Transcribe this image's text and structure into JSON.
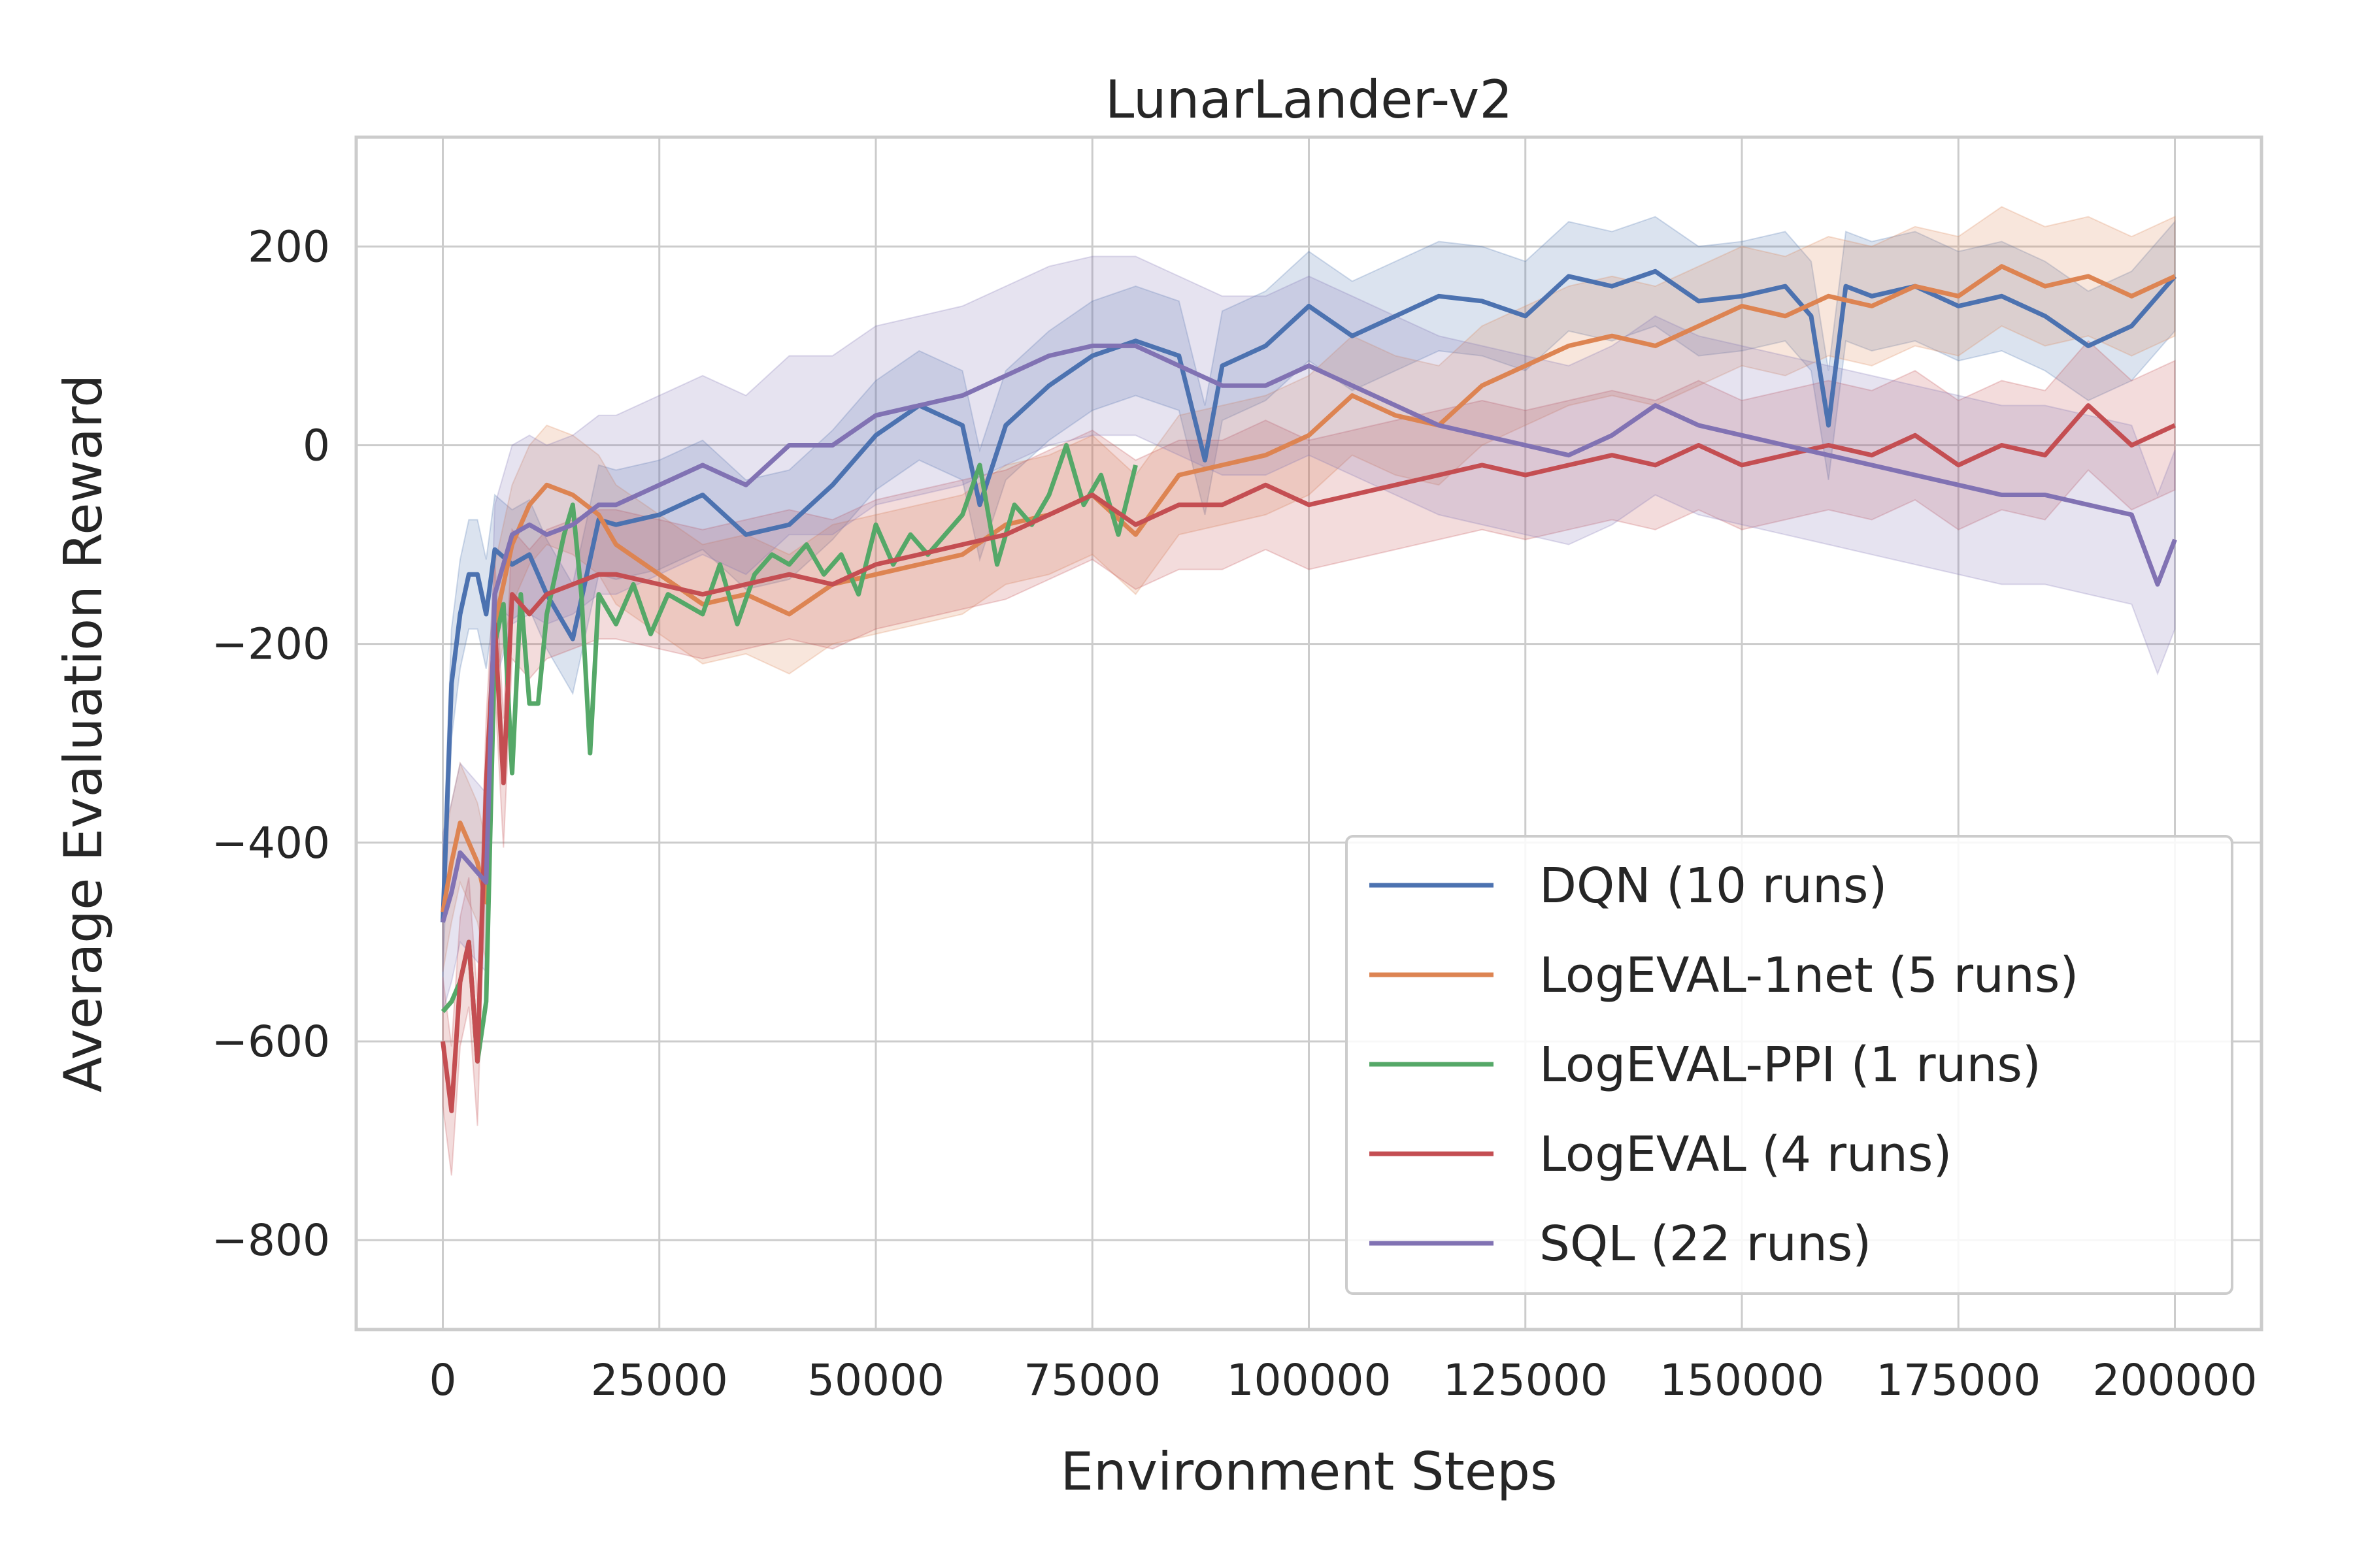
{
  "chart_data": {
    "type": "line",
    "title": "LunarLander-v2",
    "xlabel": "Environment Steps",
    "ylabel": "Average Evaluation Reward",
    "xlim": [
      -10000,
      210000
    ],
    "ylim": [
      -890,
      310
    ],
    "xticks": [
      0,
      25000,
      50000,
      75000,
      100000,
      125000,
      150000,
      175000,
      200000
    ],
    "yticks": [
      200,
      0,
      -200,
      -400,
      -600,
      -800
    ],
    "xtick_labels": [
      "0",
      "25000",
      "50000",
      "75000",
      "100000",
      "125000",
      "150000",
      "175000",
      "200000"
    ],
    "ytick_labels": [
      "200",
      "0",
      "−200",
      "−400",
      "−600",
      "−800"
    ],
    "grid": true,
    "legend_position": "lower-right",
    "series": [
      {
        "name": "DQN (10 runs)",
        "color": "#4c72b0",
        "band": 55,
        "x": [
          0,
          1000,
          2000,
          3000,
          4000,
          5000,
          6000,
          8000,
          10000,
          12000,
          15000,
          18000,
          20000,
          25000,
          30000,
          35000,
          40000,
          45000,
          50000,
          55000,
          60000,
          62000,
          65000,
          70000,
          75000,
          80000,
          85000,
          88000,
          90000,
          95000,
          100000,
          105000,
          110000,
          115000,
          120000,
          125000,
          130000,
          135000,
          140000,
          145000,
          150000,
          155000,
          158000,
          160000,
          162000,
          165000,
          170000,
          175000,
          180000,
          185000,
          190000,
          195000,
          200000
        ],
        "y": [
          -480,
          -240,
          -170,
          -130,
          -130,
          -170,
          -105,
          -120,
          -110,
          -150,
          -195,
          -75,
          -80,
          -70,
          -50,
          -90,
          -80,
          -40,
          10,
          40,
          20,
          -60,
          20,
          60,
          90,
          105,
          90,
          -15,
          80,
          100,
          140,
          110,
          130,
          150,
          145,
          130,
          170,
          160,
          175,
          145,
          150,
          160,
          130,
          20,
          160,
          150,
          160,
          140,
          150,
          130,
          100,
          120,
          170
        ]
      },
      {
        "name": "LogEVAL-1net (5 runs)",
        "color": "#dd8452",
        "band": 60,
        "x": [
          0,
          1000,
          2000,
          3000,
          4000,
          5000,
          6000,
          8000,
          10000,
          12000,
          15000,
          18000,
          20000,
          25000,
          30000,
          35000,
          40000,
          45000,
          50000,
          55000,
          60000,
          65000,
          70000,
          75000,
          80000,
          85000,
          90000,
          95000,
          100000,
          105000,
          110000,
          115000,
          120000,
          125000,
          130000,
          135000,
          140000,
          145000,
          150000,
          155000,
          160000,
          165000,
          170000,
          175000,
          180000,
          185000,
          190000,
          195000,
          200000
        ],
        "y": [
          -470,
          -420,
          -380,
          -400,
          -420,
          -460,
          -180,
          -100,
          -60,
          -40,
          -50,
          -70,
          -100,
          -130,
          -160,
          -150,
          -170,
          -140,
          -130,
          -120,
          -110,
          -80,
          -70,
          -50,
          -90,
          -30,
          -20,
          -10,
          10,
          50,
          30,
          20,
          60,
          80,
          100,
          110,
          100,
          120,
          140,
          130,
          150,
          140,
          160,
          150,
          180,
          160,
          170,
          150,
          170
        ]
      },
      {
        "name": "LogEVAL-PPI (1 runs)",
        "color": "#55a868",
        "band": 0,
        "x": [
          0,
          1000,
          2000,
          3000,
          4000,
          5000,
          6000,
          7000,
          8000,
          9000,
          10000,
          11000,
          12000,
          13000,
          14000,
          15000,
          16000,
          17000,
          18000,
          20000,
          22000,
          24000,
          26000,
          28000,
          30000,
          32000,
          34000,
          36000,
          38000,
          40000,
          42000,
          44000,
          46000,
          48000,
          50000,
          52000,
          54000,
          56000,
          58000,
          60000,
          62000,
          64000,
          66000,
          68000,
          70000,
          72000,
          74000,
          76000,
          78000,
          80000
        ],
        "y": [
          -570,
          -560,
          -540,
          -500,
          -620,
          -560,
          -200,
          -160,
          -330,
          -150,
          -260,
          -260,
          -170,
          -130,
          -90,
          -60,
          -150,
          -310,
          -150,
          -180,
          -140,
          -190,
          -150,
          -160,
          -170,
          -120,
          -180,
          -130,
          -110,
          -120,
          -100,
          -130,
          -110,
          -150,
          -80,
          -120,
          -90,
          -110,
          -90,
          -70,
          -20,
          -120,
          -60,
          -80,
          -50,
          0,
          -60,
          -30,
          -90,
          -20
        ]
      },
      {
        "name": "LogEVAL (4 runs)",
        "color": "#c44e52",
        "band": 65,
        "x": [
          0,
          1000,
          2000,
          3000,
          4000,
          5000,
          6000,
          7000,
          8000,
          10000,
          12000,
          15000,
          18000,
          20000,
          25000,
          30000,
          35000,
          40000,
          45000,
          50000,
          55000,
          60000,
          65000,
          70000,
          75000,
          80000,
          85000,
          90000,
          95000,
          100000,
          105000,
          110000,
          115000,
          120000,
          125000,
          130000,
          135000,
          140000,
          145000,
          150000,
          155000,
          160000,
          165000,
          170000,
          175000,
          180000,
          185000,
          190000,
          195000,
          200000
        ],
        "y": [
          -600,
          -670,
          -540,
          -500,
          -620,
          -340,
          -180,
          -340,
          -150,
          -170,
          -150,
          -140,
          -130,
          -130,
          -140,
          -150,
          -140,
          -130,
          -140,
          -120,
          -110,
          -100,
          -90,
          -70,
          -50,
          -80,
          -60,
          -60,
          -40,
          -60,
          -50,
          -40,
          -30,
          -20,
          -30,
          -20,
          -10,
          -20,
          0,
          -20,
          -10,
          0,
          -10,
          10,
          -20,
          0,
          -10,
          40,
          0,
          20
        ]
      },
      {
        "name": "SQL (22 runs)",
        "color": "#8172b3",
        "band": 90,
        "x": [
          0,
          1000,
          2000,
          3000,
          4000,
          5000,
          6000,
          8000,
          10000,
          12000,
          15000,
          18000,
          20000,
          25000,
          30000,
          35000,
          40000,
          45000,
          50000,
          55000,
          60000,
          65000,
          70000,
          75000,
          80000,
          85000,
          90000,
          95000,
          100000,
          105000,
          110000,
          115000,
          120000,
          125000,
          130000,
          135000,
          140000,
          145000,
          150000,
          155000,
          160000,
          165000,
          170000,
          175000,
          180000,
          185000,
          190000,
          195000,
          198000,
          200000
        ],
        "y": [
          -480,
          -450,
          -410,
          -420,
          -430,
          -440,
          -150,
          -90,
          -80,
          -90,
          -80,
          -60,
          -60,
          -40,
          -20,
          -40,
          0,
          0,
          30,
          40,
          50,
          70,
          90,
          100,
          100,
          80,
          60,
          60,
          80,
          60,
          40,
          20,
          10,
          0,
          -10,
          10,
          40,
          20,
          10,
          0,
          -10,
          -20,
          -30,
          -40,
          -50,
          -50,
          -60,
          -70,
          -140,
          -95
        ]
      }
    ]
  }
}
